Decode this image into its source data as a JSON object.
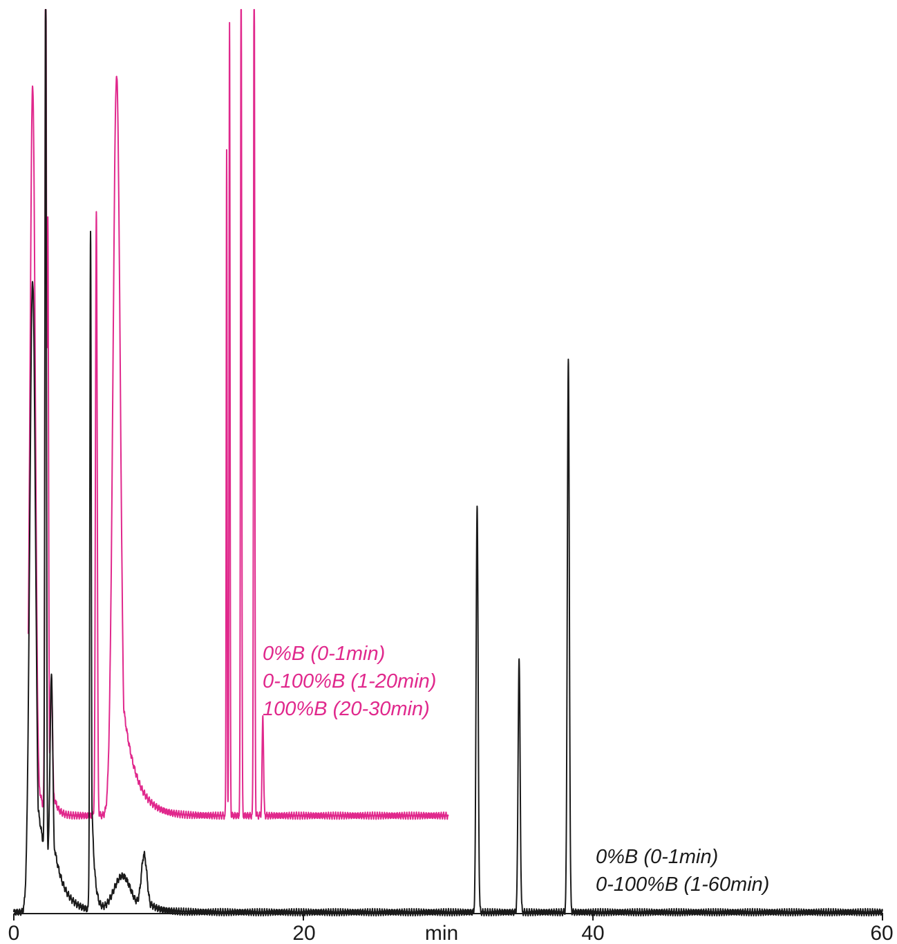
{
  "chart_data": {
    "type": "line",
    "xlabel": "min",
    "xlim": [
      0,
      60
    ],
    "ylim": [
      0,
      1
    ],
    "grid": false,
    "x_ticks": [
      "0",
      "20",
      "40",
      "60"
    ],
    "colors": {
      "magenta": "#e0288c",
      "black": "#1a1a1a",
      "axis": "#1a1a1a"
    },
    "series": [
      {
        "color": "#e0288c",
        "annotation": [
          "0%B (0-1min)",
          "0-100%B (1-20min)",
          "100%B (20-30min)"
        ],
        "baseline": 0.107,
        "x_range": [
          1.0,
          30.0
        ],
        "peaks": [
          {
            "x": 1.3,
            "height": 0.81,
            "width": 0.18,
            "tail": 0.25
          },
          {
            "x": 2.2,
            "height": 1.0,
            "width": 0.05,
            "tail": 0.02
          },
          {
            "x": 2.35,
            "height": 0.65,
            "width": 0.05,
            "tail": 0.02
          },
          {
            "x": 2.6,
            "height": 0.15,
            "width": 0.08,
            "tail": 0.3
          },
          {
            "x": 5.7,
            "height": 0.67,
            "width": 0.06,
            "tail": 0.05
          },
          {
            "x": 7.1,
            "height": 0.82,
            "width": 0.25,
            "tail": 0.9
          },
          {
            "x": 14.7,
            "height": 0.74,
            "width": 0.03,
            "tail": 0.01
          },
          {
            "x": 14.9,
            "height": 0.88,
            "width": 0.035,
            "tail": 0.01
          },
          {
            "x": 15.7,
            "height": 0.96,
            "width": 0.04,
            "tail": 0.01
          },
          {
            "x": 16.6,
            "height": 0.99,
            "width": 0.04,
            "tail": 0.01
          },
          {
            "x": 17.2,
            "height": 0.11,
            "width": 0.05,
            "tail": 0.02
          }
        ]
      },
      {
        "color": "#1a1a1a",
        "annotation": [
          "0%B (0-1min)",
          "0-100%B (1-60min)"
        ],
        "baseline": 0.0,
        "x_range": [
          0.0,
          60.0
        ],
        "peaks": [
          {
            "x": 1.3,
            "height": 0.7,
            "width": 0.2,
            "tail": 0.9
          },
          {
            "x": 2.2,
            "height": 1.0,
            "width": 0.05,
            "tail": 0.02
          },
          {
            "x": 2.6,
            "height": 0.22,
            "width": 0.1,
            "tail": 0.6
          },
          {
            "x": 5.3,
            "height": 0.75,
            "width": 0.05,
            "tail": 0.2
          },
          {
            "x": 7.5,
            "height": 0.04,
            "width": 0.6,
            "tail": 1.5
          },
          {
            "x": 9.0,
            "height": 0.06,
            "width": 0.2,
            "tail": 0.5
          },
          {
            "x": 32.0,
            "height": 0.45,
            "width": 0.07,
            "tail": 0.05
          },
          {
            "x": 34.9,
            "height": 0.28,
            "width": 0.07,
            "tail": 0.05
          },
          {
            "x": 38.3,
            "height": 0.61,
            "width": 0.07,
            "tail": 0.05
          }
        ]
      }
    ]
  }
}
